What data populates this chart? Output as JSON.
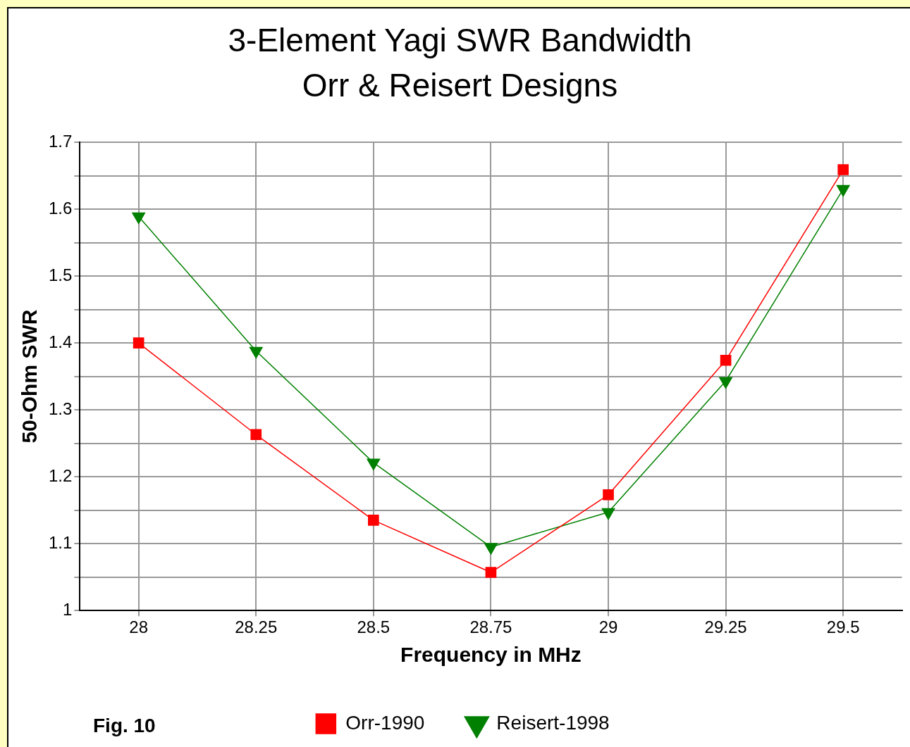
{
  "chart_data": {
    "type": "line",
    "title": "3-Element Yagi SWR Bandwidth",
    "subtitle": "Orr & Reisert Designs",
    "xlabel": "Frequency in MHz",
    "ylabel": "50-Ohm SWR",
    "categories": [
      "28",
      "28.25",
      "28.5",
      "28.75",
      "29",
      "29.25",
      "29.5"
    ],
    "series": [
      {
        "name": "Orr-1990",
        "color": "#ff0000",
        "marker": "square",
        "values": [
          1.4,
          1.263,
          1.135,
          1.057,
          1.173,
          1.374,
          1.659
        ]
      },
      {
        "name": "Reisert-1998",
        "color": "#008000",
        "marker": "triangle",
        "values": [
          1.589,
          1.388,
          1.221,
          1.095,
          1.147,
          1.343,
          1.63
        ]
      }
    ],
    "ylim": [
      1,
      1.7
    ],
    "yticks": [
      1,
      {
        "value": 1.05,
        "label": null
      },
      1.1,
      {
        "value": 1.15,
        "label": null
      },
      1.2,
      {
        "value": 1.25,
        "label": null
      },
      1.3,
      {
        "value": 1.35,
        "label": null
      },
      1.4,
      {
        "value": 1.45,
        "label": null
      },
      1.5,
      {
        "value": 1.55,
        "label": null
      },
      1.6,
      {
        "value": 1.65,
        "label": null
      },
      1.7
    ],
    "grid": true,
    "legend": "bottom",
    "line_style": "solid",
    "annotations": [
      "Fig. 10"
    ]
  }
}
